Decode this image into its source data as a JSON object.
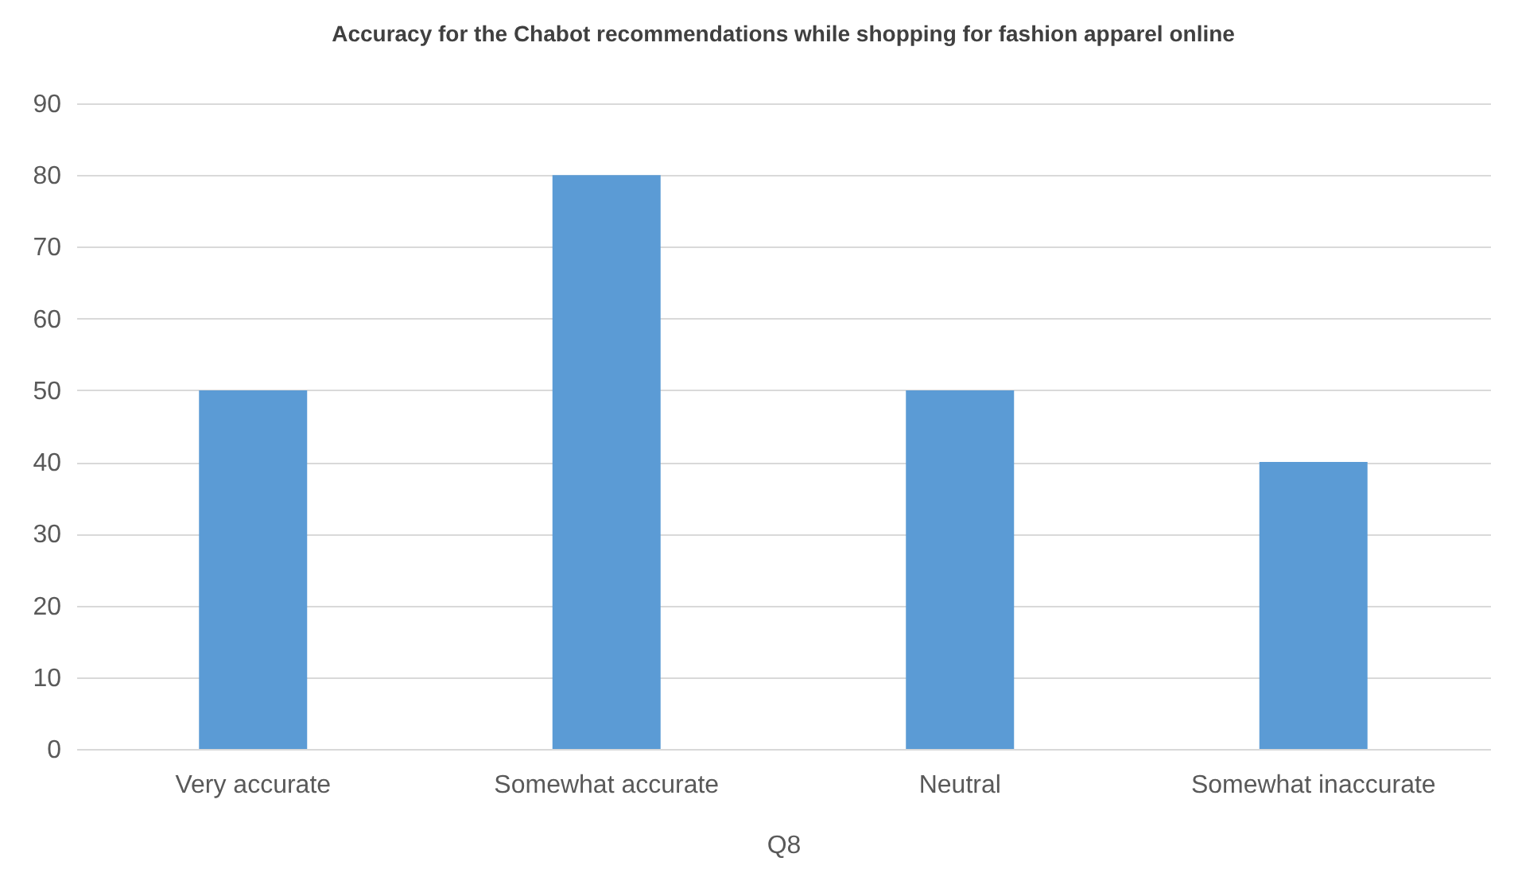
{
  "chart_data": {
    "type": "bar",
    "title": "Accuracy for the Chabot recommendations while shopping for fashion apparel online",
    "xlabel": "Q8",
    "categories": [
      "Very accurate",
      "Somewhat accurate",
      "Neutral",
      "Somewhat inaccurate"
    ],
    "series": [
      {
        "color": "#5b9bd5",
        "values": [
          50,
          80,
          50,
          40
        ]
      }
    ],
    "ylim": [
      0,
      90
    ],
    "yticks": [
      0,
      10,
      20,
      30,
      40,
      50,
      60,
      70,
      80,
      90
    ],
    "grid": "y"
  }
}
